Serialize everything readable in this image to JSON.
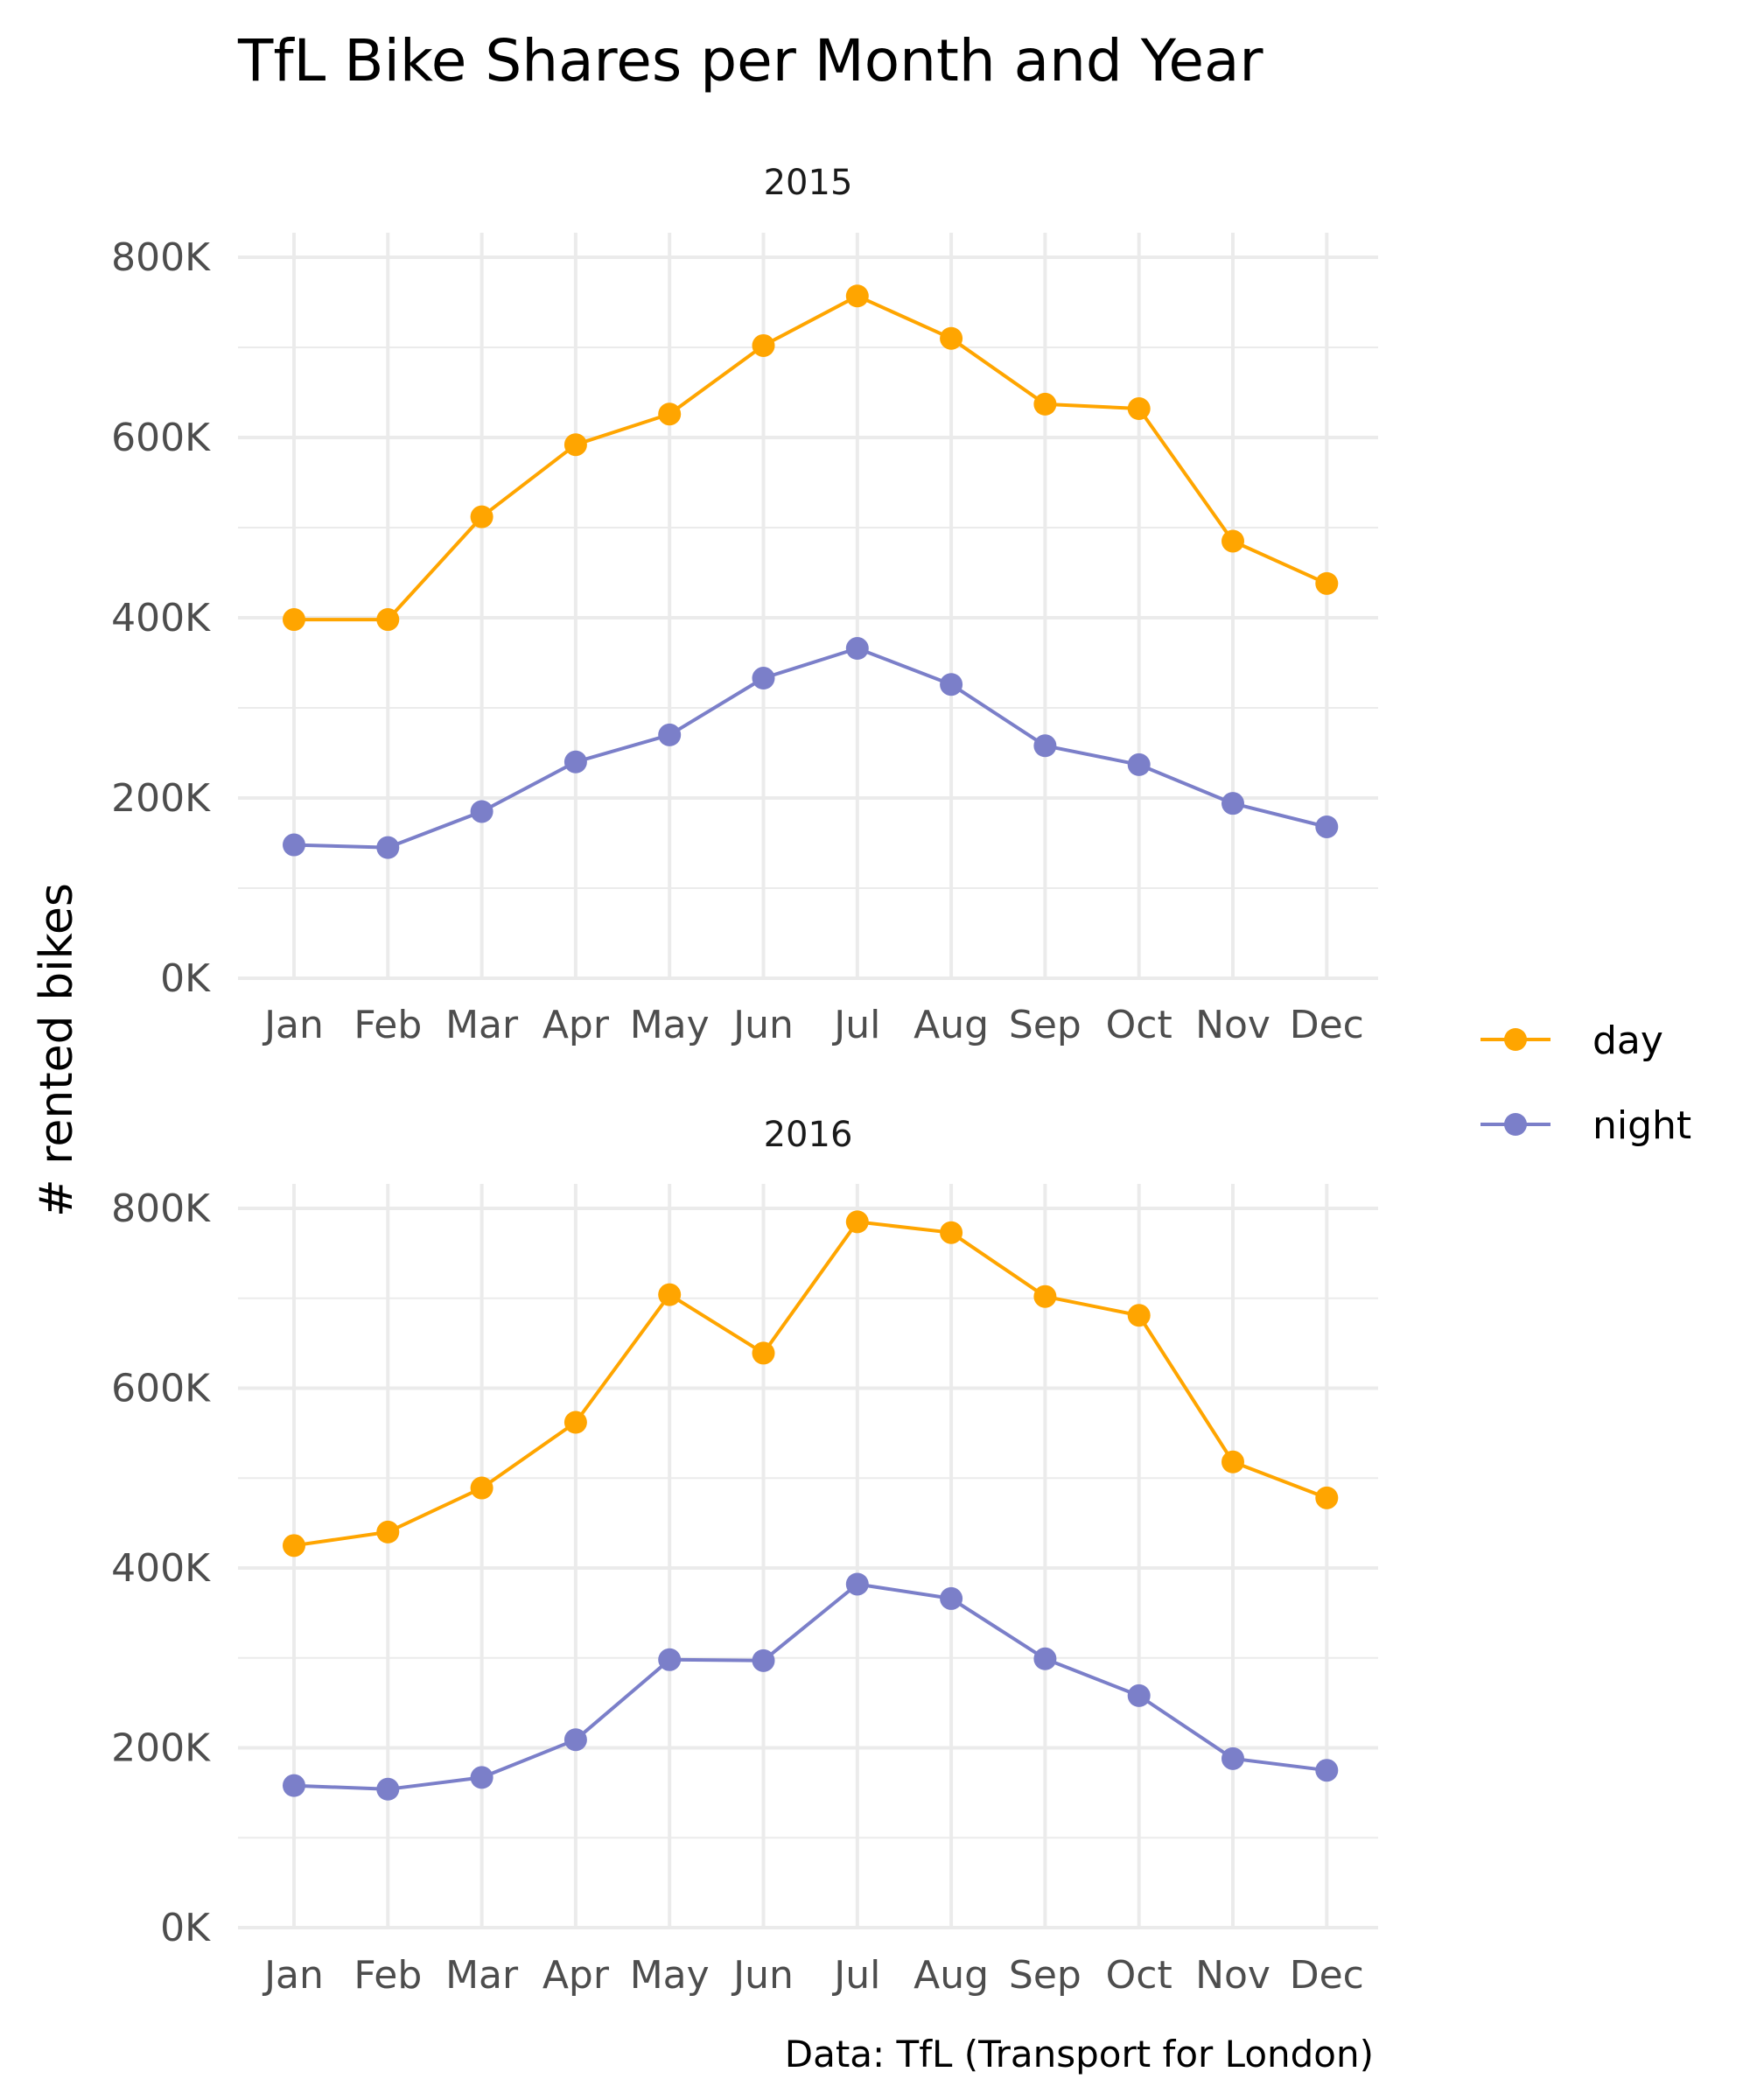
{
  "chart_data": {
    "type": "line",
    "title": "TfL Bike Shares per Month and Year",
    "ylabel": "# rented bikes",
    "xlabel": "",
    "caption": "Data: TfL (Transport for London)",
    "categories": [
      "Jan",
      "Feb",
      "Mar",
      "Apr",
      "May",
      "Jun",
      "Jul",
      "Aug",
      "Sep",
      "Oct",
      "Nov",
      "Dec"
    ],
    "ylim": [
      0,
      800000
    ],
    "y_ticks": [
      0,
      200000,
      400000,
      600000,
      800000
    ],
    "y_tick_labels": [
      "0K",
      "200K",
      "400K",
      "600K",
      "800K"
    ],
    "grid": true,
    "legend_position": "right",
    "legend": [
      {
        "name": "day",
        "color": "#FFA500"
      },
      {
        "name": "night",
        "color": "#7B7FC9"
      }
    ],
    "panels": [
      {
        "label": "2015",
        "series": [
          {
            "name": "day",
            "values": [
              398000,
              398000,
              512000,
              592000,
              626000,
              702000,
              757000,
              710000,
              637000,
              632000,
              485000,
              438000
            ]
          },
          {
            "name": "night",
            "values": [
              148000,
              145000,
              185000,
              240000,
              270000,
              333000,
              366000,
              326000,
              258000,
              237000,
              194000,
              168000
            ]
          }
        ]
      },
      {
        "label": "2016",
        "series": [
          {
            "name": "day",
            "values": [
              425000,
              440000,
              489000,
              562000,
              704000,
              639000,
              785000,
              773000,
              702000,
              681000,
              518000,
              478000
            ]
          },
          {
            "name": "night",
            "values": [
              158000,
              154000,
              167000,
              209000,
              298000,
              297000,
              382000,
              366000,
              299000,
              258000,
              188000,
              175000
            ]
          }
        ]
      }
    ]
  }
}
